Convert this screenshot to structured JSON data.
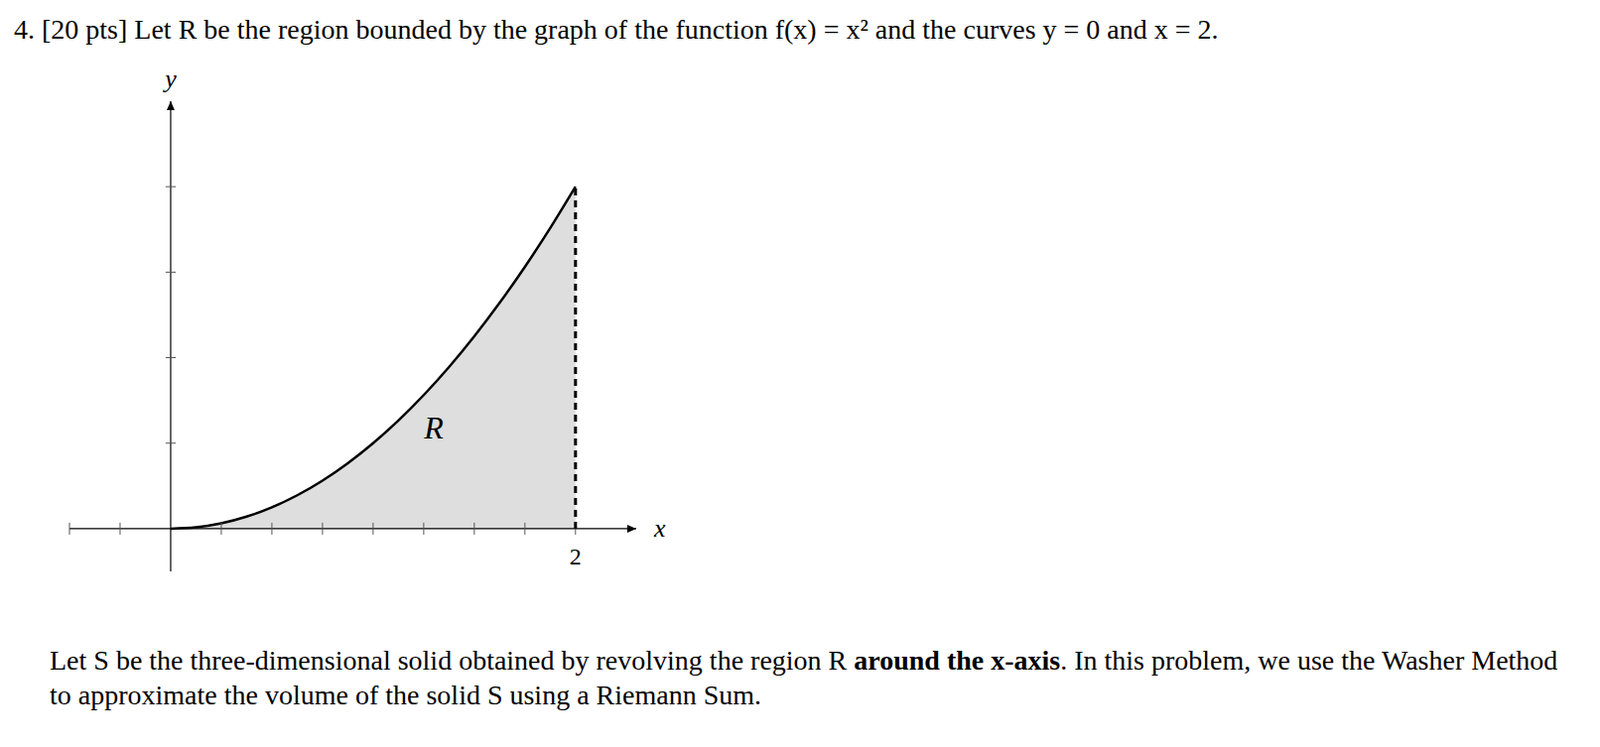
{
  "header": "4. [20 pts] Let R be the region bounded by the graph of the function f(x) = x² and the curves y = 0 and x = 2.",
  "chart_data": {
    "type": "area",
    "xlabel": "x",
    "ylabel": "y",
    "x": [
      0,
      0.125,
      0.25,
      0.375,
      0.5,
      0.625,
      0.75,
      0.875,
      1,
      1.125,
      1.25,
      1.375,
      1.5,
      1.625,
      1.75,
      1.875,
      2
    ],
    "values": [
      0,
      0.015625,
      0.0625,
      0.140625,
      0.25,
      0.390625,
      0.5625,
      0.765625,
      1,
      1.265625,
      1.5625,
      1.890625,
      2.25,
      2.640625,
      3.0625,
      3.515625,
      4
    ],
    "color": "#dedede",
    "xlim": [
      -0.5,
      2.3
    ],
    "ylim": [
      -0.5,
      5
    ],
    "xticks": [
      2
    ],
    "x_minor_ticks": [
      -0.5,
      -0.25,
      0.25,
      0.5,
      0.75,
      1,
      1.25,
      1.5,
      1.75,
      2
    ],
    "y_minor_ticks": [
      1,
      2,
      3,
      4
    ],
    "tick_labels": "x",
    "grid": false,
    "region_label": {
      "text": "R",
      "x": 1.3,
      "y": 1.18
    }
  },
  "body": {
    "before": "Let S be the three-dimensional solid obtained by revolving the region R ",
    "bold": "around the x-axis",
    "after": ". In this problem, we use the Washer Method to approximate the volume of the solid S using a Riemann Sum."
  }
}
